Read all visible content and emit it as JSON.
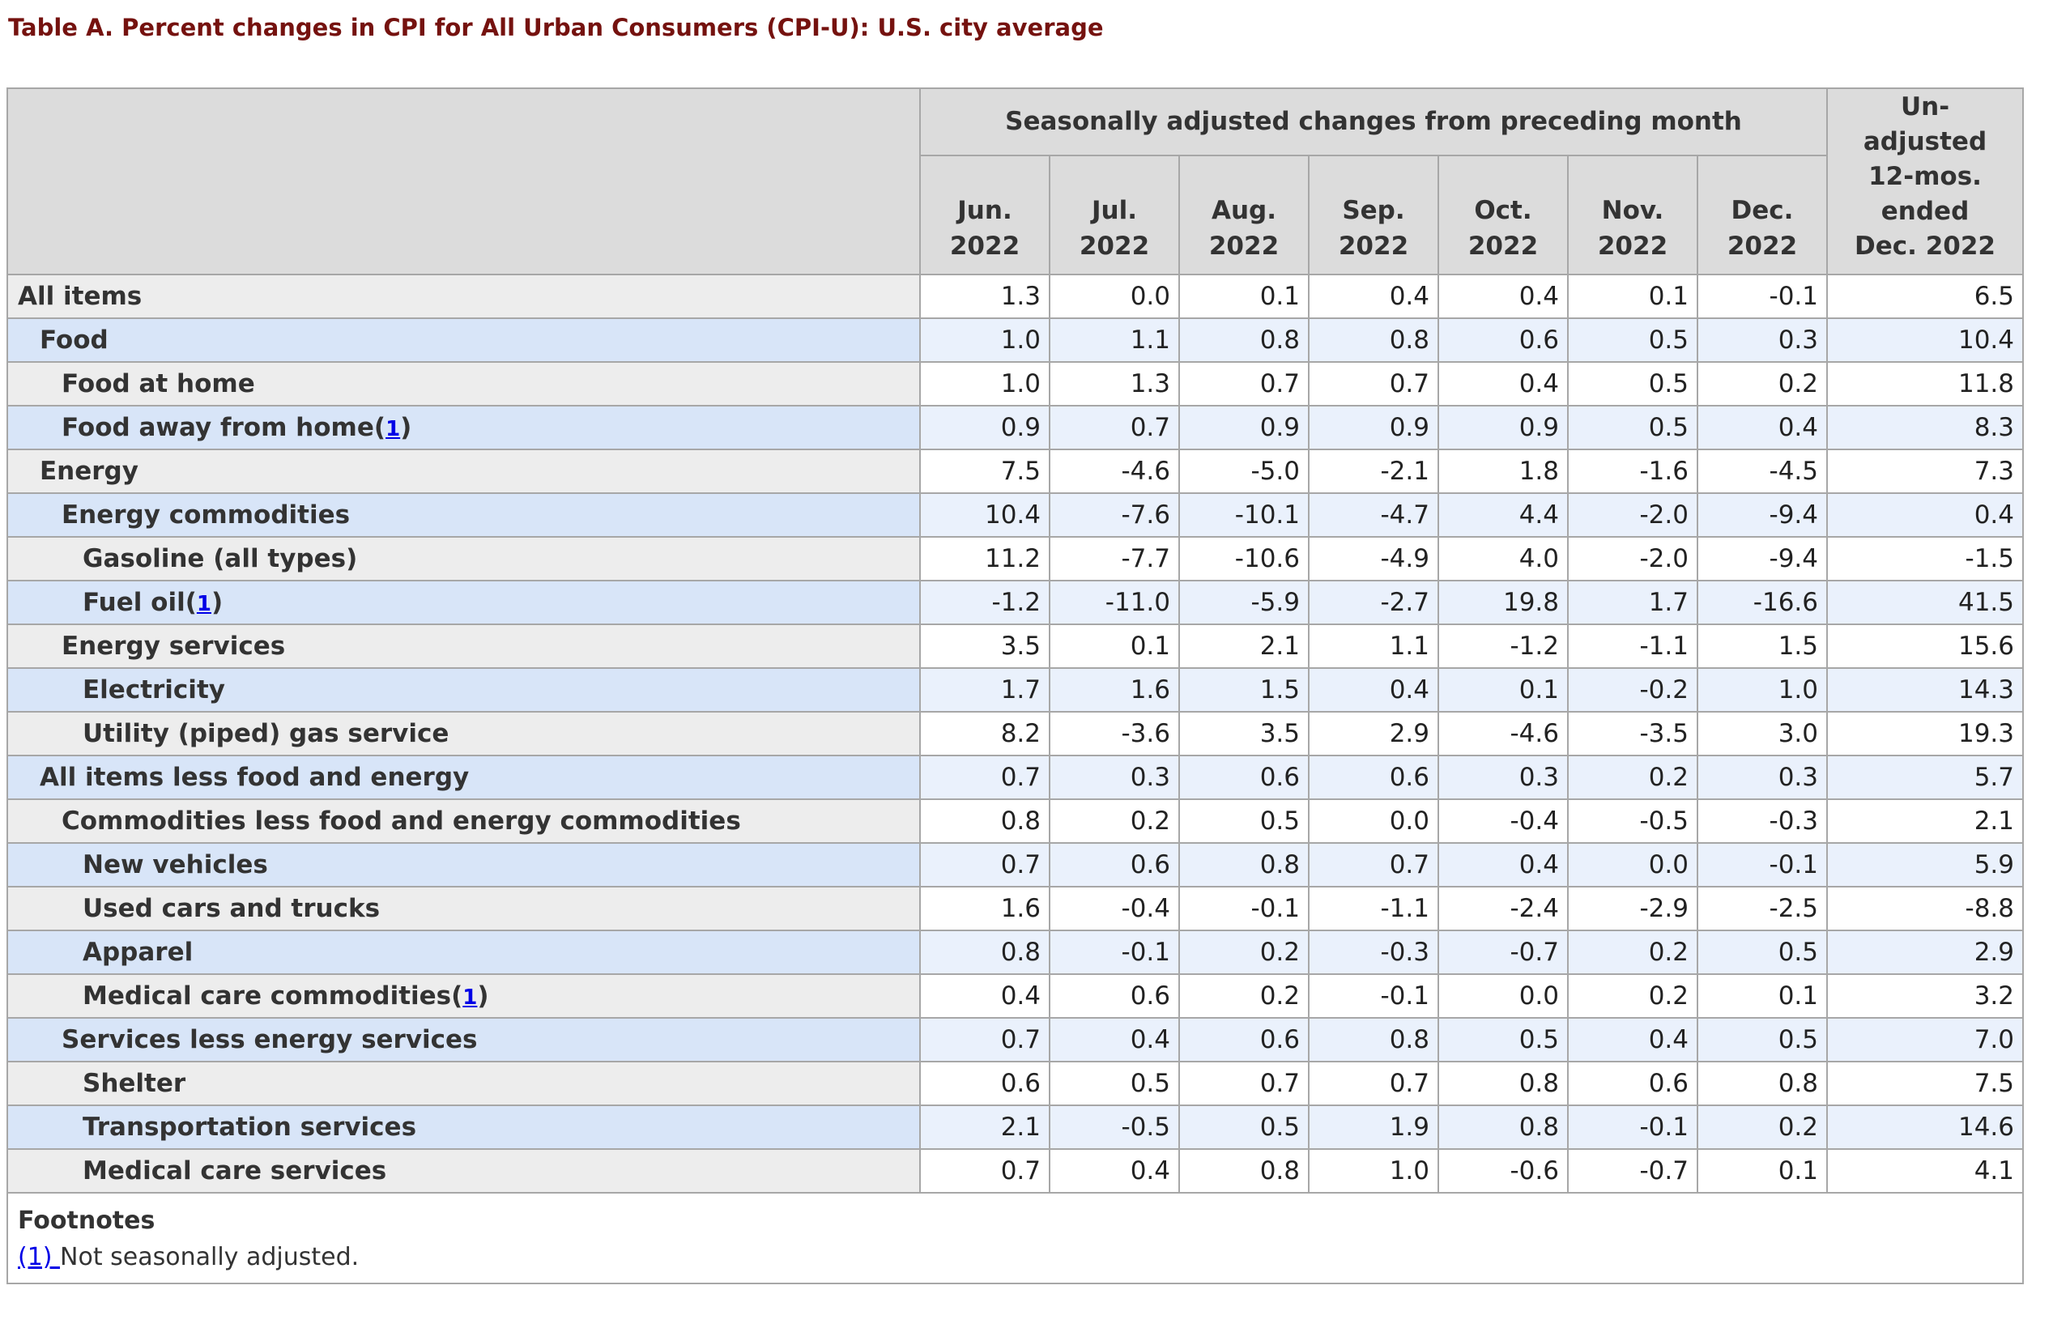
{
  "page_title": "Table A. Percent changes in CPI for All Urban Consumers (CPI-U): U.S. city average",
  "colors": {
    "title": "#75120f",
    "link_blue": "#0000e6",
    "header_bg": "#dcdcdc",
    "row_gray_label_bg": "#ededed",
    "row_gray_value_bg": "#ffffff",
    "row_blue_label_bg": "#d8e5f8",
    "row_blue_value_bg": "#eaf1fc",
    "border": "#a7a7a7",
    "text": "#333333"
  },
  "table": {
    "group_header": "Seasonally adjusted changes from preceding month",
    "months": [
      {
        "abbr": "Jun.",
        "year": "2022"
      },
      {
        "abbr": "Jul.",
        "year": "2022"
      },
      {
        "abbr": "Aug.",
        "year": "2022"
      },
      {
        "abbr": "Sep.",
        "year": "2022"
      },
      {
        "abbr": "Oct.",
        "year": "2022"
      },
      {
        "abbr": "Nov.",
        "year": "2022"
      },
      {
        "abbr": "Dec.",
        "year": "2022"
      }
    ],
    "unadjusted_lines": [
      "Un-",
      "adjusted",
      "12-mos.",
      "ended",
      "Dec. 2022"
    ],
    "rows": [
      {
        "label": "All items",
        "indent": 0,
        "footnote_marker": null,
        "values": [
          "1.3",
          "0.0",
          "0.1",
          "0.4",
          "0.4",
          "0.1",
          "-0.1",
          "6.5"
        ]
      },
      {
        "label": "Food",
        "indent": 1,
        "footnote_marker": null,
        "values": [
          "1.0",
          "1.1",
          "0.8",
          "0.8",
          "0.6",
          "0.5",
          "0.3",
          "10.4"
        ]
      },
      {
        "label": "Food at home",
        "indent": 2,
        "footnote_marker": null,
        "values": [
          "1.0",
          "1.3",
          "0.7",
          "0.7",
          "0.4",
          "0.5",
          "0.2",
          "11.8"
        ]
      },
      {
        "label": "Food away from home",
        "indent": 2,
        "footnote_marker": "1",
        "values": [
          "0.9",
          "0.7",
          "0.9",
          "0.9",
          "0.9",
          "0.5",
          "0.4",
          "8.3"
        ]
      },
      {
        "label": "Energy",
        "indent": 1,
        "footnote_marker": null,
        "values": [
          "7.5",
          "-4.6",
          "-5.0",
          "-2.1",
          "1.8",
          "-1.6",
          "-4.5",
          "7.3"
        ]
      },
      {
        "label": "Energy commodities",
        "indent": 2,
        "footnote_marker": null,
        "values": [
          "10.4",
          "-7.6",
          "-10.1",
          "-4.7",
          "4.4",
          "-2.0",
          "-9.4",
          "0.4"
        ]
      },
      {
        "label": "Gasoline (all types)",
        "indent": 3,
        "footnote_marker": null,
        "values": [
          "11.2",
          "-7.7",
          "-10.6",
          "-4.9",
          "4.0",
          "-2.0",
          "-9.4",
          "-1.5"
        ]
      },
      {
        "label": "Fuel oil",
        "indent": 3,
        "footnote_marker": "1",
        "values": [
          "-1.2",
          "-11.0",
          "-5.9",
          "-2.7",
          "19.8",
          "1.7",
          "-16.6",
          "41.5"
        ]
      },
      {
        "label": "Energy services",
        "indent": 2,
        "footnote_marker": null,
        "values": [
          "3.5",
          "0.1",
          "2.1",
          "1.1",
          "-1.2",
          "-1.1",
          "1.5",
          "15.6"
        ]
      },
      {
        "label": "Electricity",
        "indent": 3,
        "footnote_marker": null,
        "values": [
          "1.7",
          "1.6",
          "1.5",
          "0.4",
          "0.1",
          "-0.2",
          "1.0",
          "14.3"
        ]
      },
      {
        "label": "Utility (piped) gas service",
        "indent": 3,
        "footnote_marker": null,
        "values": [
          "8.2",
          "-3.6",
          "3.5",
          "2.9",
          "-4.6",
          "-3.5",
          "3.0",
          "19.3"
        ]
      },
      {
        "label": "All items less food and energy",
        "indent": 1,
        "footnote_marker": null,
        "values": [
          "0.7",
          "0.3",
          "0.6",
          "0.6",
          "0.3",
          "0.2",
          "0.3",
          "5.7"
        ]
      },
      {
        "label": "Commodities less food and energy commodities",
        "indent": 2,
        "footnote_marker": null,
        "values": [
          "0.8",
          "0.2",
          "0.5",
          "0.0",
          "-0.4",
          "-0.5",
          "-0.3",
          "2.1"
        ]
      },
      {
        "label": "New vehicles",
        "indent": 3,
        "footnote_marker": null,
        "values": [
          "0.7",
          "0.6",
          "0.8",
          "0.7",
          "0.4",
          "0.0",
          "-0.1",
          "5.9"
        ]
      },
      {
        "label": "Used cars and trucks",
        "indent": 3,
        "footnote_marker": null,
        "values": [
          "1.6",
          "-0.4",
          "-0.1",
          "-1.1",
          "-2.4",
          "-2.9",
          "-2.5",
          "-8.8"
        ]
      },
      {
        "label": "Apparel",
        "indent": 3,
        "footnote_marker": null,
        "values": [
          "0.8",
          "-0.1",
          "0.2",
          "-0.3",
          "-0.7",
          "0.2",
          "0.5",
          "2.9"
        ]
      },
      {
        "label": "Medical care commodities",
        "indent": 3,
        "footnote_marker": "1",
        "values": [
          "0.4",
          "0.6",
          "0.2",
          "-0.1",
          "0.0",
          "0.2",
          "0.1",
          "3.2"
        ]
      },
      {
        "label": "Services less energy services",
        "indent": 2,
        "footnote_marker": null,
        "values": [
          "0.7",
          "0.4",
          "0.6",
          "0.8",
          "0.5",
          "0.4",
          "0.5",
          "7.0"
        ]
      },
      {
        "label": "Shelter",
        "indent": 3,
        "footnote_marker": null,
        "values": [
          "0.6",
          "0.5",
          "0.7",
          "0.7",
          "0.8",
          "0.6",
          "0.8",
          "7.5"
        ]
      },
      {
        "label": "Transportation services",
        "indent": 3,
        "footnote_marker": null,
        "values": [
          "2.1",
          "-0.5",
          "0.5",
          "1.9",
          "0.8",
          "-0.1",
          "0.2",
          "14.6"
        ]
      },
      {
        "label": "Medical care services",
        "indent": 3,
        "footnote_marker": null,
        "values": [
          "0.7",
          "0.4",
          "0.8",
          "1.0",
          "-0.6",
          "-0.7",
          "0.1",
          "4.1"
        ]
      }
    ],
    "footnotes": {
      "heading": "Footnotes",
      "items": [
        {
          "marker": "(1) ",
          "text": "Not seasonally adjusted."
        }
      ]
    }
  }
}
